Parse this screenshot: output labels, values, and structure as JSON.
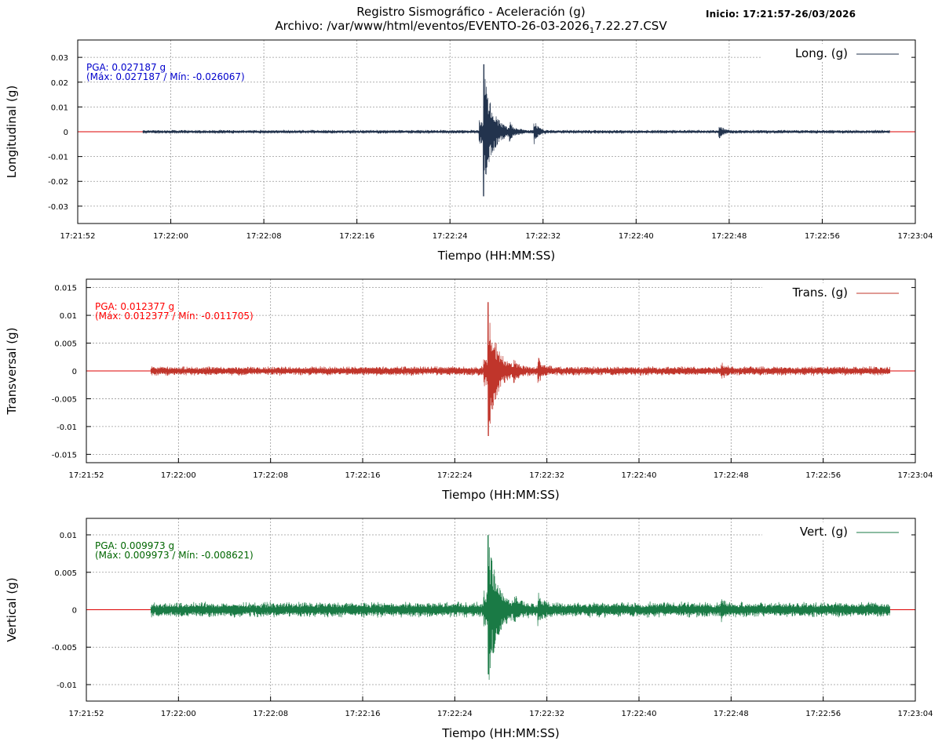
{
  "header": {
    "title_line1": "Registro Sismográfico - Aceleración (g)",
    "title_line2_prefix": "Archivo: /var/www/html/eventos/EVENTO-26-03-2026",
    "title_line2_sub": "1",
    "title_line2_suffix": "7.22.27.CSV",
    "start_info": "Inicio: 17:21:57-26/03/2026"
  },
  "chart_data": [
    {
      "type": "line",
      "name": "long",
      "legend": "Long. (g)",
      "ylabel": "Longitudinal (g)",
      "xlabel": "Tiempo (HH:MM:SS)",
      "color": "#22334d",
      "pga_line1": "PGA: 0.027187 g",
      "pga_line2": "(Máx: 0.027187 / Mín: -0.026067)",
      "pga_color": "#0000cc",
      "pga": 0.027187,
      "max": 0.027187,
      "min": -0.026067,
      "ylim": [
        -0.037,
        0.037
      ],
      "yticks": [
        0.03,
        0.02,
        0.01,
        0,
        -0.01,
        -0.02,
        -0.03
      ],
      "ytick_labels": [
        "0.03",
        "0.02",
        "0.01",
        "0",
        "-0.01",
        "-0.02",
        "-0.03"
      ],
      "xlim_seconds": [
        0,
        72
      ],
      "xticks": [
        "17:21:52",
        "17:22:00",
        "17:22:08",
        "17:22:16",
        "17:22:24",
        "17:22:32",
        "17:22:40",
        "17:22:48",
        "17:22:56",
        "17:23:04"
      ],
      "data_start": "17:21:57",
      "data_end": "17:23:02",
      "peak_time": "17:22:27",
      "noise_amplitude": 0.0008
    },
    {
      "type": "line",
      "name": "trans",
      "legend": "Trans. (g)",
      "ylabel": "Transversal (g)",
      "xlabel": "Tiempo (HH:MM:SS)",
      "color": "#c0352b",
      "pga_line1": "PGA: 0.012377 g",
      "pga_line2": "(Máx: 0.012377 / Mín: -0.011705)",
      "pga_color": "#ff0000",
      "pga": 0.012377,
      "max": 0.012377,
      "min": -0.011705,
      "ylim": [
        -0.0165,
        0.0165
      ],
      "yticks": [
        0.015,
        0.01,
        0.005,
        0,
        -0.005,
        -0.01,
        -0.015
      ],
      "ytick_labels": [
        "0.015",
        "0.01",
        "0.005",
        "0",
        "-0.005",
        "-0.01",
        "-0.015"
      ],
      "xlim_seconds": [
        0,
        72
      ],
      "xticks": [
        "17:21:52",
        "17:22:00",
        "17:22:08",
        "17:22:16",
        "17:22:24",
        "17:22:32",
        "17:22:40",
        "17:22:48",
        "17:22:56",
        "17:23:04"
      ],
      "data_start": "17:21:57",
      "data_end": "17:23:02",
      "peak_time": "17:22:27",
      "noise_amplitude": 0.0009
    },
    {
      "type": "line",
      "name": "vert",
      "legend": "Vert. (g)",
      "ylabel": "Vertical (g)",
      "xlabel": "Tiempo (HH:MM:SS)",
      "color": "#1a7a45",
      "pga_line1": "PGA: 0.009973 g",
      "pga_line2": "(Máx: 0.009973 / Mín: -0.008621)",
      "pga_color": "#006600",
      "pga": 0.009973,
      "max": 0.009973,
      "min": -0.008621,
      "ylim": [
        -0.0122,
        0.0122
      ],
      "yticks": [
        0.01,
        0.005,
        0,
        -0.005,
        -0.01
      ],
      "ytick_labels": [
        "0.01",
        "0.005",
        "0",
        "-0.005",
        "-0.01"
      ],
      "xlim_seconds": [
        0,
        72
      ],
      "xticks": [
        "17:21:52",
        "17:22:00",
        "17:22:08",
        "17:22:16",
        "17:22:24",
        "17:22:32",
        "17:22:40",
        "17:22:48",
        "17:22:56",
        "17:23:04"
      ],
      "data_start": "17:21:57",
      "data_end": "17:23:02",
      "peak_time": "17:22:27",
      "noise_amplitude": 0.0011
    }
  ]
}
